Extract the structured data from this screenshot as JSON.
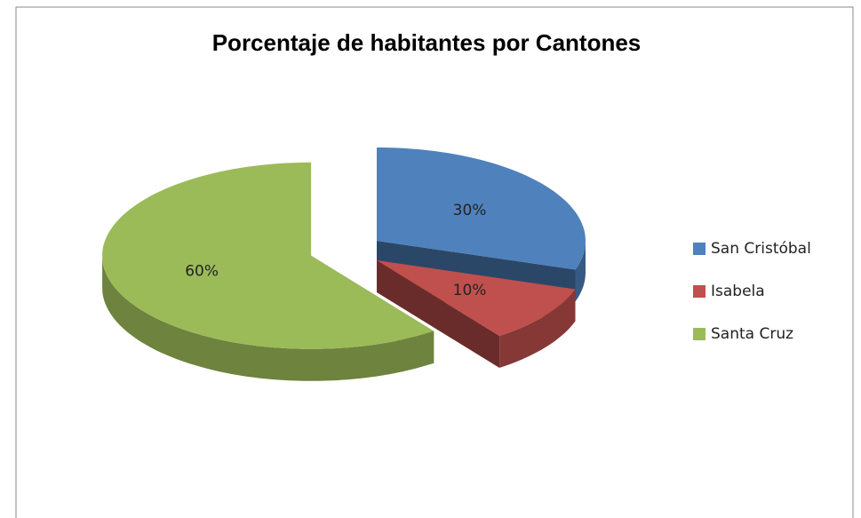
{
  "chart_data": {
    "type": "pie",
    "title": "Porcentaje de habitantes por Cantones",
    "categories": [
      "San Cristóbal",
      "Isabela",
      "Santa Cruz"
    ],
    "values": [
      30,
      10,
      60
    ],
    "value_labels": [
      "30%",
      "10%",
      "60%"
    ],
    "colors": [
      "#4f81bd",
      "#c0504d",
      "#9bbb59"
    ],
    "legend": "right"
  }
}
